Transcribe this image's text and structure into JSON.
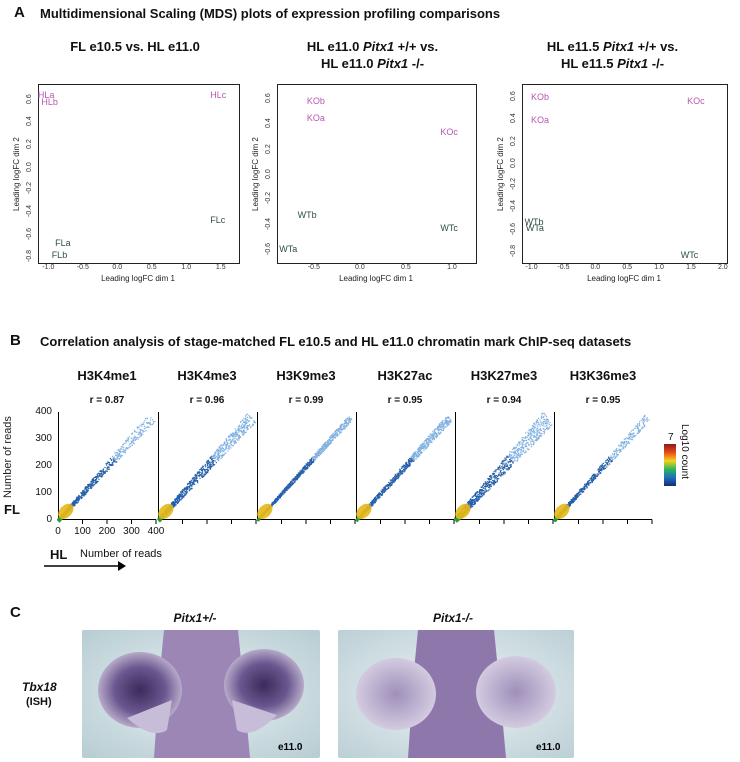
{
  "panelA": {
    "letter": "A",
    "title": "Multidimensional Scaling (MDS) plots of expression profiling comparisons",
    "plots": [
      {
        "title_line1_parts": [
          "FL e10.5  vs. HL e11.0"
        ],
        "title_line2": "",
        "xlabel": "Leading logFC dim 1",
        "ylabel": "Leading logFC dim 2",
        "xticks": [
          "-1.0",
          "-0.5",
          "0.0",
          "0.5",
          "1.0",
          "1.5"
        ],
        "yticks": [
          "0.6",
          "0.4",
          "0.2",
          "0.0",
          "-0.2",
          "-0.4",
          "-0.6",
          "-0.8"
        ],
        "points": [
          {
            "label": "HLa",
            "x": -1.05,
            "y": 0.62,
            "group": "ko"
          },
          {
            "label": "HLb",
            "x": -1.0,
            "y": 0.56,
            "group": "ko"
          },
          {
            "label": "HLc",
            "x": 1.45,
            "y": 0.62,
            "group": "ko"
          },
          {
            "label": "FLc",
            "x": 1.45,
            "y": -0.48,
            "group": "wt"
          },
          {
            "label": "FLa",
            "x": -0.8,
            "y": -0.68,
            "group": "wt"
          },
          {
            "label": "FLb",
            "x": -0.85,
            "y": -0.79,
            "group": "wt"
          }
        ]
      },
      {
        "title_line1": "HL e11.0 ",
        "title_italic1": "Pitx1",
        "title_line1_tail": " +/+ vs.",
        "title_line2": "HL e11.0 ",
        "title_italic2": "Pitx1",
        "title_line2_tail": " -/-",
        "xlabel": "Leading logFC dim 1",
        "ylabel": "Leading logFC dim 2",
        "xticks": [
          "-0.5",
          "0.0",
          "0.5",
          "1.0"
        ],
        "yticks": [
          "0.6",
          "0.4",
          "0.2",
          "0.0",
          "-0.2",
          "-0.4",
          "-0.6"
        ],
        "points": [
          {
            "label": "KOb",
            "x": -0.5,
            "y": 0.57,
            "group": "ko"
          },
          {
            "label": "KOa",
            "x": -0.5,
            "y": 0.43,
            "group": "ko"
          },
          {
            "label": "KOc",
            "x": 0.95,
            "y": 0.32,
            "group": "ko"
          },
          {
            "label": "WTb",
            "x": -0.6,
            "y": -0.33,
            "group": "wt"
          },
          {
            "label": "WTc",
            "x": 0.95,
            "y": -0.43,
            "group": "wt"
          },
          {
            "label": "WTa",
            "x": -0.8,
            "y": -0.6,
            "group": "wt"
          }
        ]
      },
      {
        "title_line1": "HL e11.5 ",
        "title_italic1": "Pitx1",
        "title_line1_tail": " +/+ vs.",
        "title_line2": "HL e11.5 ",
        "title_italic2": "Pitx1",
        "title_line2_tail": " -/-",
        "xlabel": "Leading logFC dim 1",
        "ylabel": "Leading logFC dim 2",
        "xticks": [
          "-1.0",
          "-0.5",
          "0.0",
          "0.5",
          "1.0",
          "1.5",
          "2.0"
        ],
        "yticks": [
          "0.6",
          "0.4",
          "0.2",
          "0.0",
          "-0.2",
          "-0.4",
          "-0.6",
          "-0.8"
        ],
        "points": [
          {
            "label": "KOb",
            "x": -0.9,
            "y": 0.58,
            "group": "ko"
          },
          {
            "label": "KOa",
            "x": -0.9,
            "y": 0.38,
            "group": "ko"
          },
          {
            "label": "KOc",
            "x": 1.55,
            "y": 0.55,
            "group": "ko"
          },
          {
            "label": "WTb",
            "x": -1.0,
            "y": -0.54,
            "group": "wt"
          },
          {
            "label": "WTa",
            "x": -0.98,
            "y": -0.59,
            "group": "wt"
          },
          {
            "label": "WTc",
            "x": 1.45,
            "y": -0.84,
            "group": "wt"
          }
        ]
      }
    ]
  },
  "panelB": {
    "letter": "B",
    "title": "Correlation analysis of stage-matched FL e10.5 and HL e11.0 chromatin mark ChIP-seq datasets",
    "marks": [
      {
        "name": "H3K4me1",
        "r": "r = 0.87",
        "slope": 1.0,
        "extent": 0.95,
        "spread": 0.05
      },
      {
        "name": "H3K4me3",
        "r": "r = 0.96",
        "slope": 1.0,
        "extent": 0.95,
        "spread": 0.06
      },
      {
        "name": "H3K9me3",
        "r": "r = 0.99",
        "slope": 1.0,
        "extent": 0.95,
        "spread": 0.03
      },
      {
        "name": "H3K27ac",
        "r": "r = 0.95",
        "slope": 1.0,
        "extent": 0.95,
        "spread": 0.04
      },
      {
        "name": "H3K27me3",
        "r": "r = 0.94",
        "slope": 1.0,
        "extent": 0.95,
        "spread": 0.08
      },
      {
        "name": "H3K36me3",
        "r": "r = 0.95",
        "slope": 1.0,
        "extent": 0.95,
        "spread": 0.04
      }
    ],
    "yticks": [
      "400",
      "300",
      "200",
      "100",
      "0"
    ],
    "xticks": [
      "0",
      "100",
      "200",
      "300",
      "400"
    ],
    "ylabel": "Number of reads",
    "fl_label": "FL",
    "hl_label": "HL",
    "xlabel": "Number of reads",
    "colorbar_max": "7",
    "colorbar_label": "Log10 count"
  },
  "panelC": {
    "letter": "C",
    "captions": [
      "Pitx1+/-",
      "Pitx1-/-"
    ],
    "gene_label": "Tbx18",
    "gene_sub": "(ISH)",
    "stage": "e11.0"
  }
}
